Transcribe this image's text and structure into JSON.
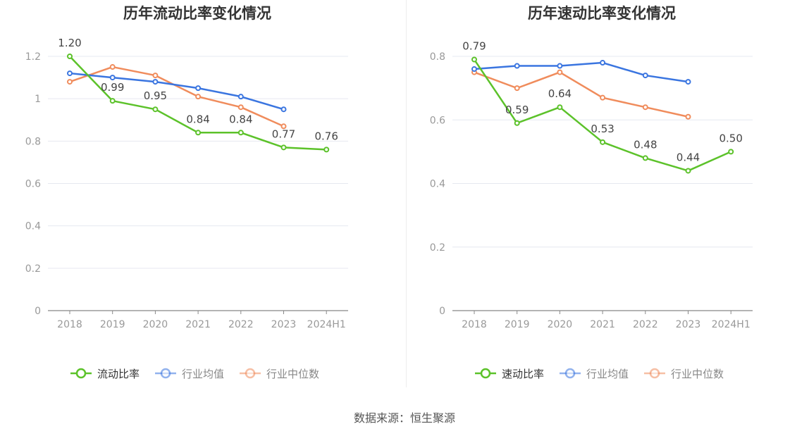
{
  "source_text": "数据来源：恒生聚源",
  "chart_data": [
    {
      "type": "line",
      "title": "历年流动比率变化情况",
      "categories": [
        "2018",
        "2019",
        "2020",
        "2021",
        "2022",
        "2023",
        "2024H1"
      ],
      "ylim": [
        0,
        1.2
      ],
      "yticks": [
        0,
        0.2,
        0.4,
        0.6,
        0.8,
        1,
        1.2
      ],
      "ytick_labels": [
        "0",
        "0.2",
        "0.4",
        "0.6",
        "0.8",
        "1",
        "1.2"
      ],
      "xlabel": "",
      "ylabel": "",
      "grid": true,
      "legend_position": "bottom",
      "series": [
        {
          "name": "流动比率",
          "color": "#5cc22a",
          "values": [
            1.2,
            0.99,
            0.95,
            0.84,
            0.84,
            0.77,
            0.76
          ],
          "labels": [
            "1.20",
            "0.99",
            "0.95",
            "0.84",
            "0.84",
            "0.77",
            "0.76"
          ],
          "show_labels": true
        },
        {
          "name": "行业均值",
          "color": "#3a75e0",
          "values": [
            1.12,
            1.1,
            1.08,
            1.05,
            1.01,
            0.95,
            null
          ],
          "show_labels": false
        },
        {
          "name": "行业中位数",
          "color": "#f08c5c",
          "values": [
            1.08,
            1.15,
            1.11,
            1.01,
            0.96,
            0.87,
            null
          ],
          "show_labels": false
        }
      ]
    },
    {
      "type": "line",
      "title": "历年速动比率变化情况",
      "categories": [
        "2018",
        "2019",
        "2020",
        "2021",
        "2022",
        "2023",
        "2024H1"
      ],
      "ylim": [
        0,
        0.8
      ],
      "yticks": [
        0,
        0.2,
        0.4,
        0.6,
        0.8
      ],
      "ytick_labels": [
        "0",
        "0.2",
        "0.4",
        "0.6",
        "0.8"
      ],
      "xlabel": "",
      "ylabel": "",
      "grid": true,
      "legend_position": "bottom",
      "series": [
        {
          "name": "速动比率",
          "color": "#5cc22a",
          "values": [
            0.79,
            0.59,
            0.64,
            0.53,
            0.48,
            0.44,
            0.5
          ],
          "labels": [
            "0.79",
            "0.59",
            "0.64",
            "0.53",
            "0.48",
            "0.44",
            "0.50"
          ],
          "show_labels": true
        },
        {
          "name": "行业均值",
          "color": "#3a75e0",
          "values": [
            0.76,
            0.77,
            0.77,
            0.78,
            0.74,
            0.72,
            null
          ],
          "show_labels": false
        },
        {
          "name": "行业中位数",
          "color": "#f08c5c",
          "values": [
            0.75,
            0.7,
            0.75,
            0.67,
            0.64,
            0.61,
            null
          ],
          "show_labels": false
        }
      ]
    }
  ]
}
